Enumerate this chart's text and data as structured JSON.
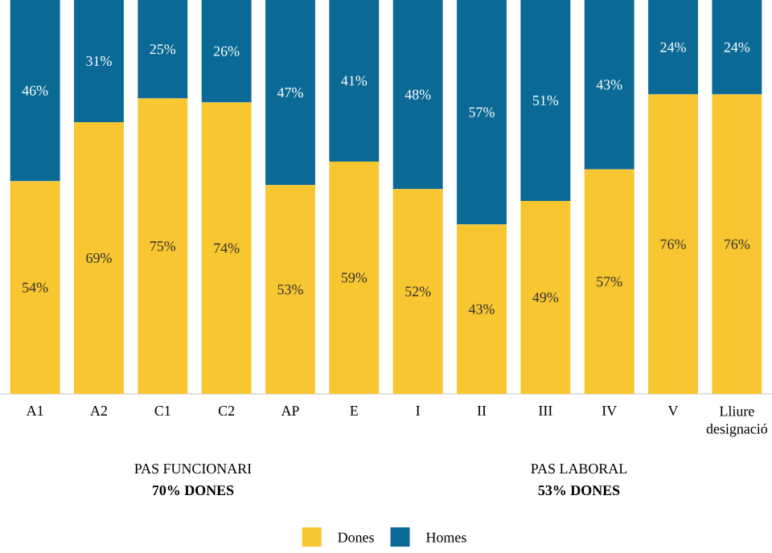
{
  "chart_data": {
    "type": "bar",
    "stacked": true,
    "categories": [
      "A1",
      "A2",
      "C1",
      "C2",
      "AP",
      "E",
      "I",
      "II",
      "III",
      "IV",
      "V",
      "Lliure designació"
    ],
    "series": [
      {
        "name": "Dones",
        "color": "#f8c630",
        "values": [
          54,
          69,
          75,
          74,
          53,
          59,
          52,
          43,
          49,
          57,
          76,
          76
        ],
        "value_labels": [
          "54%",
          "69%",
          "75%",
          "74%",
          "53%",
          "59%",
          "52%",
          "43%",
          "49%",
          "57%",
          "76%",
          "76%"
        ]
      },
      {
        "name": "Homes",
        "color": "#0b6a95",
        "values": [
          46,
          31,
          25,
          26,
          47,
          41,
          48,
          57,
          51,
          43,
          24,
          24
        ],
        "value_labels": [
          "46%",
          "31%",
          "25%",
          "26%",
          "47%",
          "41%",
          "48%",
          "57%",
          "51%",
          "43%",
          "24%",
          "24%"
        ]
      }
    ],
    "ylim": [
      0,
      100
    ],
    "tick_labels": "x",
    "legend": "bottom",
    "annotations": [
      "PAS FUNCIONARI",
      "70% DONES",
      "PAS LABORAL",
      "53% DONES"
    ]
  }
}
